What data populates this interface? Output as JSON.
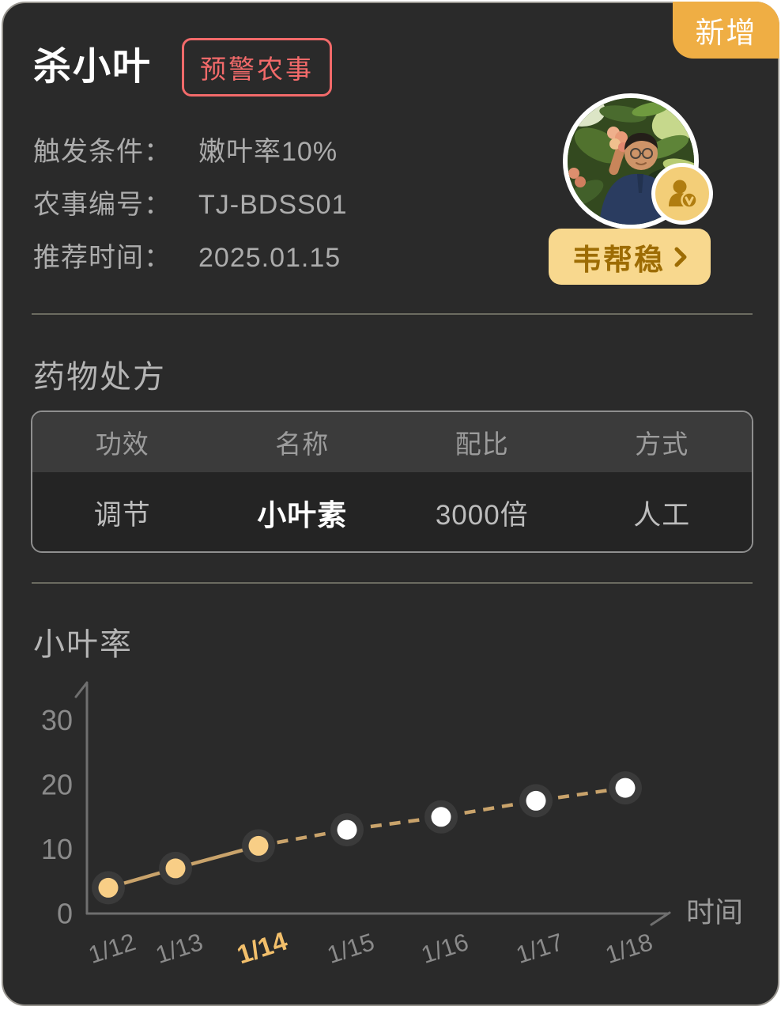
{
  "card": {
    "title": "杀小叶",
    "type_badge": "预警农事",
    "corner_badge": "新增",
    "accent_red": "#F26A6A",
    "accent_gold": "#EFAE44",
    "background": "#2A2A2A"
  },
  "info": {
    "rows": [
      {
        "label": "触发条件：",
        "value": "嫩叶率10%"
      },
      {
        "label": "农事编号：",
        "value": "TJ-BDSS01"
      },
      {
        "label": "推荐时间：",
        "value": "2025.01.15"
      }
    ]
  },
  "expert": {
    "name": "韦帮稳",
    "badge_icon": "verified-person-icon",
    "button_color": "#F8D88E",
    "button_text_color": "#9D6C04"
  },
  "prescription": {
    "heading": "药物处方",
    "table": {
      "headers": [
        "功效",
        "名称",
        "配比",
        "方式"
      ],
      "rows": [
        [
          "调节",
          "小叶素",
          "3000倍",
          "人工"
        ]
      ]
    }
  },
  "chart_section": {
    "heading": "小叶率"
  },
  "chart_data": {
    "type": "line",
    "title": "小叶率",
    "x": [
      "1/12",
      "1/13",
      "1/14",
      "1/15",
      "1/16",
      "1/17",
      "1/18"
    ],
    "values": [
      4,
      7,
      10.5,
      13,
      15,
      17.5,
      19.5
    ],
    "xlabel": "时间",
    "ylabel": "",
    "yticks": [
      0,
      10,
      20,
      30
    ],
    "ylim": [
      0,
      35
    ],
    "grid": false,
    "legend": false,
    "highlight_x": "1/14",
    "annotations": "solid gold segment 1/12-1/14 with gold points; dashed forecast segment 1/14-1/18 with white points",
    "style": {
      "line_color": "#C9A36B",
      "past_point_color": "#F8CE86",
      "future_point_color": "#FFFFFF",
      "ring_color": "#3A3A3A",
      "axis_color": "#6F6F6F",
      "tick_color": "#8A8A8A",
      "highlight_tick_color": "#F2BF6B",
      "xlabel_color": "#9A9A9A"
    }
  }
}
